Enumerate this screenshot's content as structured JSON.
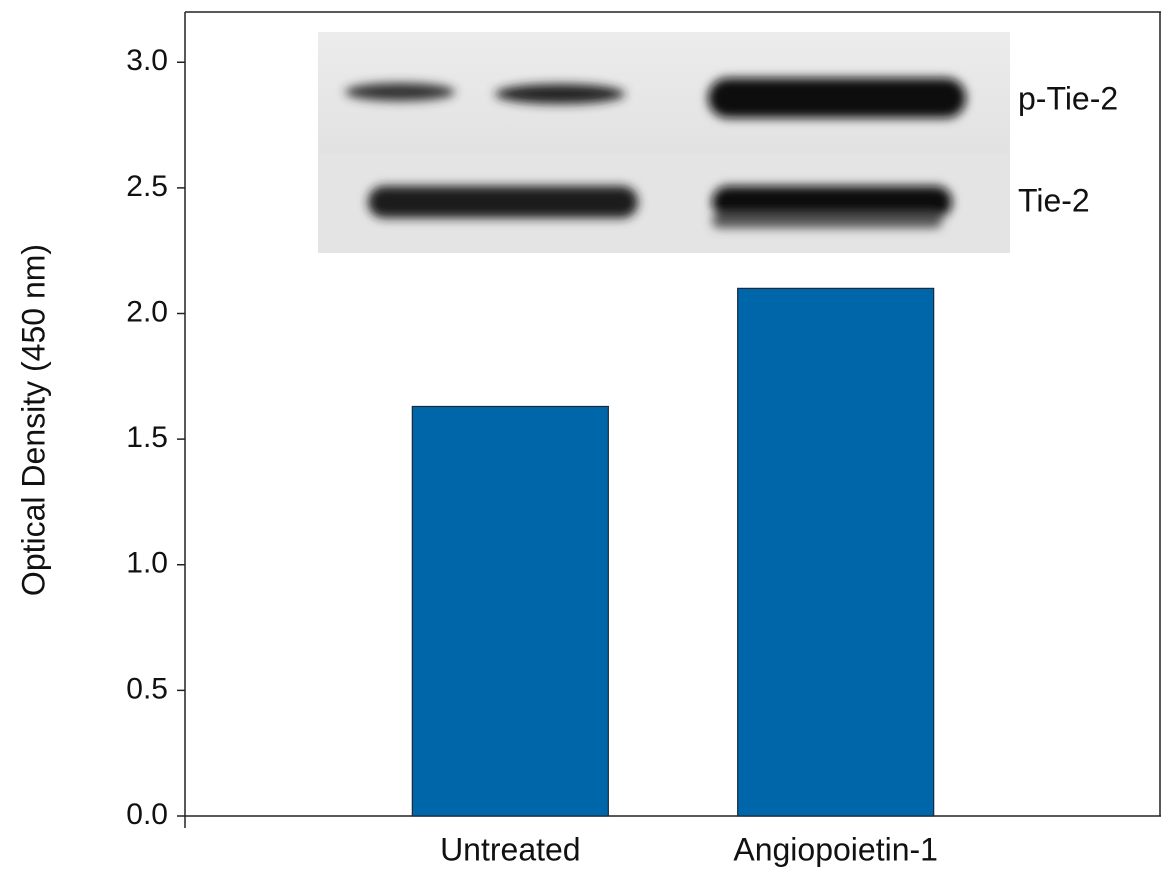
{
  "chart_data": {
    "type": "bar",
    "y_label": "Optical Density (450 nm)",
    "categories": [
      "Untreated",
      "Angiopoietin-1"
    ],
    "values": [
      1.63,
      2.1
    ],
    "color": "#0066aa",
    "ylim": [
      0,
      3.2
    ],
    "yticks": [
      {
        "value": 0,
        "label": "0.0"
      },
      0.5,
      {
        "value": 1,
        "label": "1.0"
      },
      1.5,
      {
        "value": 2,
        "label": "2.0"
      },
      2.5,
      {
        "value": 3,
        "label": "3.0"
      }
    ],
    "inset_labels": [
      "p-Tie-2",
      "Tie-2"
    ]
  }
}
